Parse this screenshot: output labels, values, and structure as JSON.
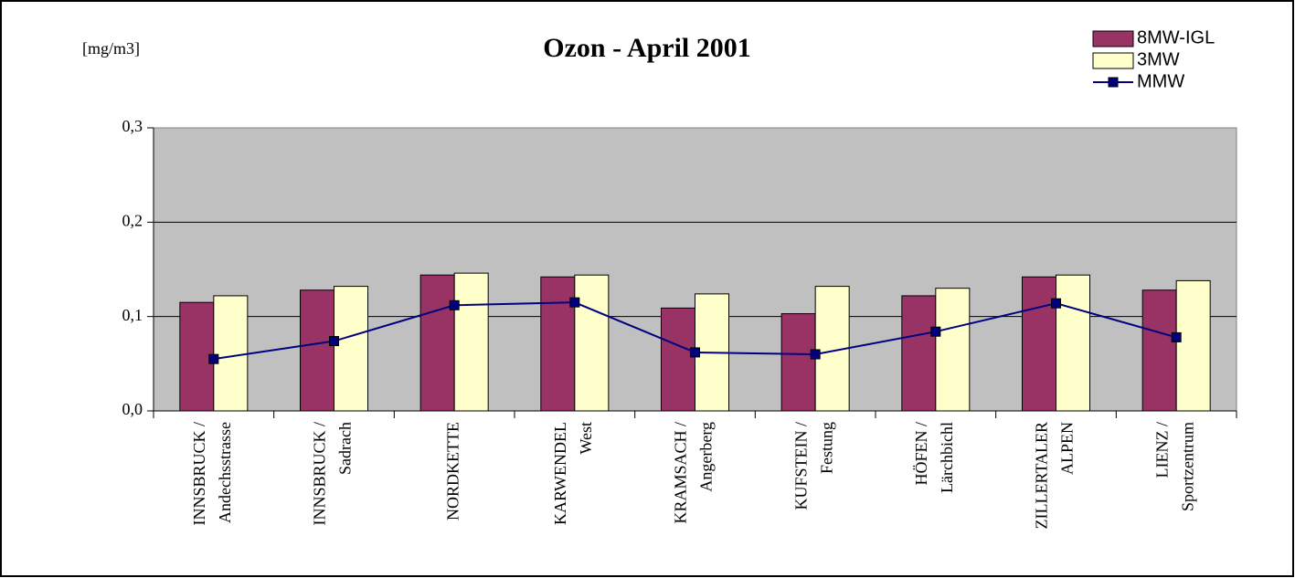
{
  "chart_data": {
    "type": "bar",
    "title": "Ozon - April 2001",
    "y_label": "[mg/m3]",
    "categories": [
      [
        "INNSBRUCK /",
        "Andechsstrasse"
      ],
      [
        "INNSBRUCK /",
        "Sadrach"
      ],
      [
        "NORDKETTE"
      ],
      [
        "KARWENDEL",
        "West"
      ],
      [
        "KRAMSACH /",
        "Angerberg"
      ],
      [
        "KUFSTEIN /",
        "Festung"
      ],
      [
        "HÖFEN /",
        "Lärchbichl"
      ],
      [
        "ZILLERTALER",
        "ALPEN"
      ],
      [
        "LIENZ /",
        "Sportzentrum"
      ]
    ],
    "series": [
      {
        "name": "8MW-IGL",
        "type": "bar",
        "color": "#993366",
        "values": [
          0.115,
          0.128,
          0.144,
          0.142,
          0.109,
          0.103,
          0.122,
          0.142,
          0.128
        ]
      },
      {
        "name": "3MW",
        "type": "bar",
        "color": "#ffffcc",
        "values": [
          0.122,
          0.132,
          0.146,
          0.144,
          0.124,
          0.132,
          0.13,
          0.144,
          0.138
        ]
      },
      {
        "name": "MMW",
        "type": "line",
        "color": "#000080",
        "values": [
          0.055,
          0.074,
          0.112,
          0.115,
          0.062,
          0.06,
          0.084,
          0.114,
          0.078
        ]
      }
    ],
    "ylim": [
      0,
      0.3
    ],
    "yticks": [
      {
        "value": 0,
        "label": "0,0"
      },
      {
        "value": 0.1,
        "label": "0,1"
      },
      {
        "value": 0.2,
        "label": "0,2"
      },
      {
        "value": 0.3,
        "label": "0,3"
      }
    ],
    "grid": true,
    "legend": "top-right",
    "plot_background": "#c0c0c0"
  }
}
